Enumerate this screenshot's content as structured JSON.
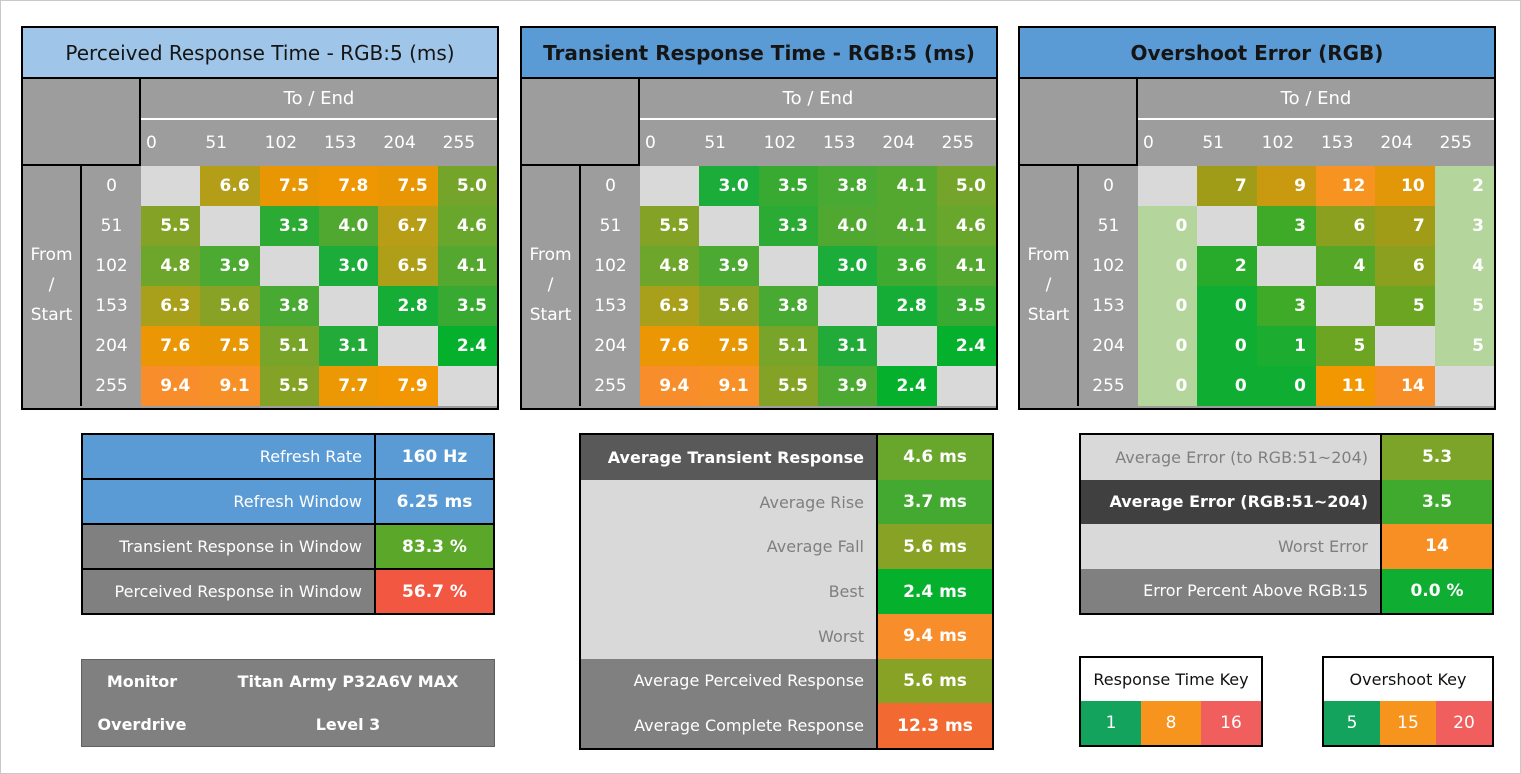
{
  "colors": {
    "header_gray": "#9d9d9d",
    "diagonal_gray": "#d9d9d9",
    "pale_green": "#b4d59b",
    "title_blue_light": "#9fc5e8",
    "title_blue": "#5b9bd5",
    "key_green": "#13a35c",
    "key_orange": "#f7941e",
    "key_red": "#f15e5e"
  },
  "matrices": [
    {
      "title": "Perceived Response Time - RGB:5 (ms)",
      "title_bg": "#9fc5e8",
      "title_style": "normal",
      "col_group": "To / End",
      "row_group": [
        "From",
        "/",
        "Start"
      ],
      "levels": [
        "0",
        "51",
        "102",
        "153",
        "204",
        "255"
      ],
      "cells": [
        [
          null,
          {
            "v": "6.6",
            "c": "#b49d17"
          },
          {
            "v": "7.5",
            "c": "#e99605"
          },
          {
            "v": "7.8",
            "c": "#ef9703"
          },
          {
            "v": "7.5",
            "c": "#e99605"
          },
          {
            "v": "5.0",
            "c": "#75a42a"
          }
        ],
        [
          {
            "v": "5.5",
            "c": "#84a326"
          },
          null,
          {
            "v": "3.3",
            "c": "#2cab34"
          },
          {
            "v": "4.0",
            "c": "#51a830"
          },
          {
            "v": "6.7",
            "c": "#b89d16"
          },
          {
            "v": "4.6",
            "c": "#68a62c"
          }
        ],
        [
          {
            "v": "4.8",
            "c": "#6ea52b"
          },
          {
            "v": "3.9",
            "c": "#4ca931"
          },
          null,
          {
            "v": "3.0",
            "c": "#1cac3a"
          },
          {
            "v": "6.5",
            "c": "#af9e18"
          },
          {
            "v": "4.1",
            "c": "#55a82f"
          }
        ],
        [
          {
            "v": "6.3",
            "c": "#a89f1b"
          },
          {
            "v": "5.6",
            "c": "#88a225"
          },
          {
            "v": "3.8",
            "c": "#48a933"
          },
          null,
          {
            "v": "2.8",
            "c": "#15ad36"
          },
          {
            "v": "3.5",
            "c": "#38aa31"
          }
        ],
        [
          {
            "v": "7.6",
            "c": "#eb9605"
          },
          {
            "v": "7.5",
            "c": "#e99605"
          },
          {
            "v": "5.1",
            "c": "#77a429"
          },
          {
            "v": "3.1",
            "c": "#22ab38"
          },
          null,
          {
            "v": "2.4",
            "c": "#04b02c"
          }
        ],
        [
          {
            "v": "9.4",
            "c": "#f78d2b"
          },
          {
            "v": "9.1",
            "c": "#f79026"
          },
          {
            "v": "5.5",
            "c": "#84a326"
          },
          {
            "v": "7.7",
            "c": "#ec9704"
          },
          {
            "v": "7.9",
            "c": "#f29702"
          },
          null
        ]
      ]
    },
    {
      "title": "Transient Response Time - RGB:5 (ms)",
      "title_bg": "#5b9bd5",
      "title_style": "bold",
      "col_group": "To / End",
      "row_group": [
        "From",
        "/",
        "Start"
      ],
      "levels": [
        "0",
        "51",
        "102",
        "153",
        "204",
        "255"
      ],
      "cells": [
        [
          null,
          {
            "v": "3.0",
            "c": "#1cac3a"
          },
          {
            "v": "3.5",
            "c": "#38aa31"
          },
          {
            "v": "3.8",
            "c": "#48a933"
          },
          {
            "v": "4.1",
            "c": "#55a82f"
          },
          {
            "v": "5.0",
            "c": "#75a42a"
          }
        ],
        [
          {
            "v": "5.5",
            "c": "#84a326"
          },
          null,
          {
            "v": "3.3",
            "c": "#2cab34"
          },
          {
            "v": "4.0",
            "c": "#51a830"
          },
          {
            "v": "4.1",
            "c": "#55a82f"
          },
          {
            "v": "4.6",
            "c": "#68a62c"
          }
        ],
        [
          {
            "v": "4.8",
            "c": "#6ea52b"
          },
          {
            "v": "3.9",
            "c": "#4ca931"
          },
          null,
          {
            "v": "3.0",
            "c": "#1cac3a"
          },
          {
            "v": "3.6",
            "c": "#3faa30"
          },
          {
            "v": "4.1",
            "c": "#55a82f"
          }
        ],
        [
          {
            "v": "6.3",
            "c": "#a89f1b"
          },
          {
            "v": "5.6",
            "c": "#88a225"
          },
          {
            "v": "3.8",
            "c": "#48a933"
          },
          null,
          {
            "v": "2.8",
            "c": "#15ad36"
          },
          {
            "v": "3.5",
            "c": "#38aa31"
          }
        ],
        [
          {
            "v": "7.6",
            "c": "#eb9605"
          },
          {
            "v": "7.5",
            "c": "#e99605"
          },
          {
            "v": "5.1",
            "c": "#77a429"
          },
          {
            "v": "3.1",
            "c": "#22ab38"
          },
          null,
          {
            "v": "2.4",
            "c": "#04b02c"
          }
        ],
        [
          {
            "v": "9.4",
            "c": "#f78d2b"
          },
          {
            "v": "9.1",
            "c": "#f79026"
          },
          {
            "v": "5.5",
            "c": "#84a326"
          },
          {
            "v": "3.9",
            "c": "#4ca931"
          },
          {
            "v": "2.4",
            "c": "#04b02c"
          },
          null
        ]
      ]
    },
    {
      "title": "Overshoot Error (RGB)",
      "title_bg": "#5b9bd5",
      "title_style": "bold",
      "col_group": "To / End",
      "row_group": [
        "From",
        "/",
        "Start"
      ],
      "levels": [
        "0",
        "51",
        "102",
        "153",
        "204",
        "255"
      ],
      "cells": [
        [
          null,
          {
            "v": "7",
            "c": "#a19c18"
          },
          {
            "v": "9",
            "c": "#c9990f"
          },
          {
            "v": "12",
            "c": "#f79320"
          },
          {
            "v": "10",
            "c": "#e19707"
          },
          {
            "v": "2",
            "c": "#b4d59b"
          }
        ],
        [
          {
            "v": "0",
            "c": "#b4d59b"
          },
          null,
          {
            "v": "3",
            "c": "#3faa28"
          },
          {
            "v": "6",
            "c": "#8aa01e"
          },
          {
            "v": "7",
            "c": "#a19c18"
          },
          {
            "v": "3",
            "c": "#b4d59b"
          }
        ],
        [
          {
            "v": "0",
            "c": "#b4d59b"
          },
          {
            "v": "2",
            "c": "#28ab2b"
          },
          null,
          {
            "v": "4",
            "c": "#55a727"
          },
          {
            "v": "6",
            "c": "#8aa01e"
          },
          {
            "v": "4",
            "c": "#b4d59b"
          }
        ],
        [
          {
            "v": "0",
            "c": "#b4d59b"
          },
          {
            "v": "0",
            "c": "#0fae33"
          },
          {
            "v": "3",
            "c": "#3faa28"
          },
          null,
          {
            "v": "5",
            "c": "#6ba522"
          },
          {
            "v": "5",
            "c": "#b4d59b"
          }
        ],
        [
          {
            "v": "0",
            "c": "#b4d59b"
          },
          {
            "v": "0",
            "c": "#0fae33"
          },
          {
            "v": "1",
            "c": "#1cac2f"
          },
          {
            "v": "5",
            "c": "#6ba522"
          },
          null,
          {
            "v": "5",
            "c": "#b4d59b"
          }
        ],
        [
          {
            "v": "0",
            "c": "#b4d59b"
          },
          {
            "v": "0",
            "c": "#0fae33"
          },
          {
            "v": "0",
            "c": "#0fae33"
          },
          {
            "v": "11",
            "c": "#f29702"
          },
          {
            "v": "14",
            "c": "#f78e28"
          },
          null
        ]
      ]
    }
  ],
  "summary_tables": {
    "refresh": {
      "rows": [
        {
          "label": "Refresh Rate",
          "value": "160 Hz",
          "lb": "#5b9bd5",
          "lc": "#ffffff",
          "lbold": false,
          "vb": "#5b9bd5"
        },
        {
          "label": "Refresh Window",
          "value": "6.25 ms",
          "lb": "#5b9bd5",
          "lc": "#ffffff",
          "lbold": false,
          "vb": "#5b9bd5"
        },
        {
          "label": "Transient Response in Window",
          "value": "83.3 %",
          "lb": "#808080",
          "lc": "#ffffff",
          "lbold": false,
          "vb": "#5ba72a"
        },
        {
          "label": "Perceived Response in Window",
          "value": "56.7 %",
          "lb": "#808080",
          "lc": "#ffffff",
          "lbold": false,
          "vb": "#f25742"
        }
      ]
    },
    "transient": {
      "rows": [
        {
          "label": "Average Transient Response",
          "value": "4.6 ms",
          "lb": "#595959",
          "lc": "#ffffff",
          "lbold": true,
          "vb": "#68a62c"
        },
        {
          "label": "Average Rise",
          "value": "3.7 ms",
          "lb": "#d9d9d9",
          "lc": "#7f7f7f",
          "lbold": false,
          "vb": "#44a930"
        },
        {
          "label": "Average Fall",
          "value": "5.6 ms",
          "lb": "#d9d9d9",
          "lc": "#7f7f7f",
          "lbold": false,
          "vb": "#88a225"
        },
        {
          "label": "Best",
          "value": "2.4 ms",
          "lb": "#d9d9d9",
          "lc": "#7f7f7f",
          "lbold": false,
          "vb": "#04b02c"
        },
        {
          "label": "Worst",
          "value": "9.4 ms",
          "lb": "#d9d9d9",
          "lc": "#7f7f7f",
          "lbold": false,
          "vb": "#f78d2b"
        },
        {
          "label": "Average Perceived Response",
          "value": "5.6 ms",
          "lb": "#808080",
          "lc": "#ffffff",
          "lbold": false,
          "vb": "#88a225"
        },
        {
          "label": "Average Complete Response",
          "value": "12.3 ms",
          "lb": "#808080",
          "lc": "#ffffff",
          "lbold": false,
          "vb": "#f26a31"
        }
      ]
    },
    "error": {
      "rows": [
        {
          "label": "Average Error (to RGB:51~204)",
          "value": "5.3",
          "lb": "#d9d9d9",
          "lc": "#7f7f7f",
          "lbold": false,
          "vb": "#7ca428"
        },
        {
          "label": "Average Error (RGB:51~204)",
          "value": "3.5",
          "lb": "#404040",
          "lc": "#ffffff",
          "lbold": true,
          "vb": "#3faa2e"
        },
        {
          "label": "Worst Error",
          "value": "14",
          "lb": "#d9d9d9",
          "lc": "#7f7f7f",
          "lbold": false,
          "vb": "#f78f24"
        },
        {
          "label": "Error Percent Above RGB:15",
          "value": "0.0 %",
          "lb": "#808080",
          "lc": "#ffffff",
          "lbold": false,
          "vb": "#0fae33"
        }
      ]
    }
  },
  "monitor_info": {
    "bg": "#808080",
    "rows": [
      {
        "label": "Monitor",
        "value": "Titan Army P32A6V MAX"
      },
      {
        "label": "Overdrive",
        "value": "Level 3"
      }
    ]
  },
  "keys": [
    {
      "title": "Response Time Key",
      "cells": [
        {
          "v": "1",
          "c": "#13a35c"
        },
        {
          "v": "8",
          "c": "#f7941e"
        },
        {
          "v": "16",
          "c": "#f15e5e"
        }
      ]
    },
    {
      "title": "Overshoot Key",
      "cells": [
        {
          "v": "5",
          "c": "#13a35c"
        },
        {
          "v": "15",
          "c": "#f7941e"
        },
        {
          "v": "20",
          "c": "#f15e5e"
        }
      ]
    }
  ],
  "chart_data": [
    {
      "type": "heatmap",
      "title": "Perceived Response Time - RGB:5 (ms)",
      "xlabel": "To / End",
      "ylabel": "From / Start",
      "categories": [
        0,
        51,
        102,
        153,
        204,
        255
      ],
      "values": [
        [
          null,
          6.6,
          7.5,
          7.8,
          7.5,
          5.0
        ],
        [
          5.5,
          null,
          3.3,
          4.0,
          6.7,
          4.6
        ],
        [
          4.8,
          3.9,
          null,
          3.0,
          6.5,
          4.1
        ],
        [
          6.3,
          5.6,
          3.8,
          null,
          2.8,
          3.5
        ],
        [
          7.6,
          7.5,
          5.1,
          3.1,
          null,
          2.4
        ],
        [
          9.4,
          9.1,
          5.5,
          7.7,
          7.9,
          null
        ]
      ],
      "color_key": {
        "green": 1,
        "orange": 8,
        "red": 16
      }
    },
    {
      "type": "heatmap",
      "title": "Transient Response Time - RGB:5 (ms)",
      "xlabel": "To / End",
      "ylabel": "From / Start",
      "categories": [
        0,
        51,
        102,
        153,
        204,
        255
      ],
      "values": [
        [
          null,
          3.0,
          3.5,
          3.8,
          4.1,
          5.0
        ],
        [
          5.5,
          null,
          3.3,
          4.0,
          4.1,
          4.6
        ],
        [
          4.8,
          3.9,
          null,
          3.0,
          3.6,
          4.1
        ],
        [
          6.3,
          5.6,
          3.8,
          null,
          2.8,
          3.5
        ],
        [
          7.6,
          7.5,
          5.1,
          3.1,
          null,
          2.4
        ],
        [
          9.4,
          9.1,
          5.5,
          3.9,
          2.4,
          null
        ]
      ],
      "color_key": {
        "green": 1,
        "orange": 8,
        "red": 16
      }
    },
    {
      "type": "heatmap",
      "title": "Overshoot Error (RGB)",
      "xlabel": "To / End",
      "ylabel": "From / Start",
      "categories": [
        0,
        51,
        102,
        153,
        204,
        255
      ],
      "values": [
        [
          null,
          7,
          9,
          12,
          10,
          2
        ],
        [
          0,
          null,
          3,
          6,
          7,
          3
        ],
        [
          0,
          2,
          null,
          4,
          6,
          4
        ],
        [
          0,
          0,
          3,
          null,
          5,
          5
        ],
        [
          0,
          0,
          1,
          5,
          null,
          5
        ],
        [
          0,
          0,
          0,
          11,
          14,
          null
        ]
      ],
      "color_key": {
        "green": 5,
        "orange": 15,
        "red": 20
      }
    },
    {
      "type": "table",
      "title": "Summary",
      "rows": [
        {
          "label": "Refresh Rate",
          "value": "160 Hz"
        },
        {
          "label": "Refresh Window",
          "value": "6.25 ms"
        },
        {
          "label": "Transient Response in Window",
          "value": "83.3 %"
        },
        {
          "label": "Perceived Response in Window",
          "value": "56.7 %"
        },
        {
          "label": "Average Transient Response",
          "value": "4.6 ms"
        },
        {
          "label": "Average Rise",
          "value": "3.7 ms"
        },
        {
          "label": "Average Fall",
          "value": "5.6 ms"
        },
        {
          "label": "Best",
          "value": "2.4 ms"
        },
        {
          "label": "Worst",
          "value": "9.4 ms"
        },
        {
          "label": "Average Perceived Response",
          "value": "5.6 ms"
        },
        {
          "label": "Average Complete Response",
          "value": "12.3 ms"
        },
        {
          "label": "Average Error (to RGB:51~204)",
          "value": "5.3"
        },
        {
          "label": "Average Error (RGB:51~204)",
          "value": "3.5"
        },
        {
          "label": "Worst Error",
          "value": "14"
        },
        {
          "label": "Error Percent Above RGB:15",
          "value": "0.0 %"
        },
        {
          "label": "Monitor",
          "value": "Titan Army P32A6V MAX"
        },
        {
          "label": "Overdrive",
          "value": "Level 3"
        }
      ]
    }
  ]
}
